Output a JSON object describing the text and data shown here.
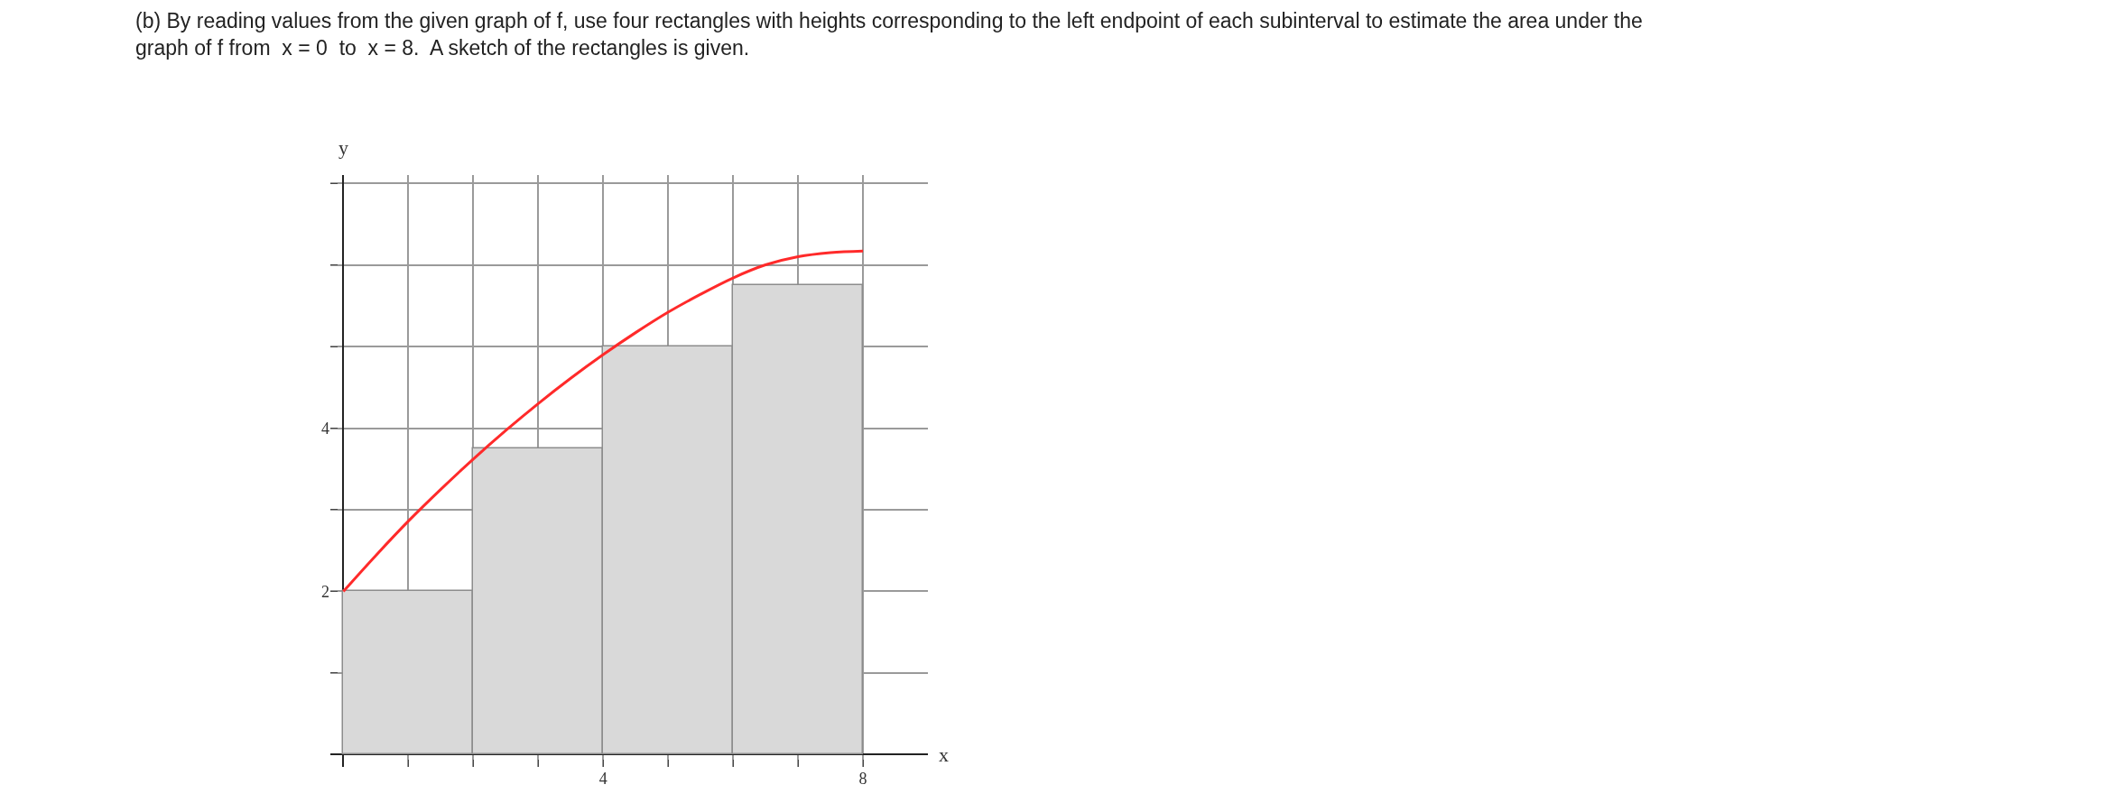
{
  "chart_data": {
    "type": "bar",
    "title": "(b) By reading values from the given graph of f, use four rectangles with heights corresponding to the left endpoint of each subinterval to estimate the area under the\ngraph of f from  x = 0  to  x = 8.  A sketch of the rectangles is given.",
    "xlabel": "x",
    "ylabel": "y",
    "series": [
      {
        "x": [
          1,
          3,
          5,
          7
        ],
        "values": [
          2,
          3.75,
          5,
          5.75
        ],
        "color": "#d9d9d9"
      },
      {
        "type": "line",
        "color": "#ff2a2a",
        "x": [
          0,
          0.5,
          1,
          1.5,
          2,
          2.5,
          3,
          3.5,
          4,
          4.5,
          5,
          5.5,
          6,
          6.5,
          7,
          7.5,
          8
        ],
        "values": [
          2,
          2.44,
          2.86,
          3.25,
          3.62,
          3.97,
          4.3,
          4.61,
          4.9,
          5.17,
          5.42,
          5.64,
          5.84,
          6.0,
          6.1,
          6.15,
          6.17
        ]
      }
    ],
    "xlim": [
      -0.2,
      9
    ],
    "ylim": [
      -0.15,
      7.1
    ],
    "xticks": [
      {
        "value": 1,
        "label": null
      },
      {
        "value": 2,
        "label": null
      },
      {
        "value": 3,
        "label": null
      },
      4,
      {
        "value": 5,
        "label": null
      },
      {
        "value": 6,
        "label": null
      },
      {
        "value": 7,
        "label": null
      },
      8
    ],
    "yticks": [
      {
        "value": 1,
        "label": null
      },
      2,
      {
        "value": 3,
        "label": null
      },
      4,
      {
        "value": 5,
        "label": null
      },
      {
        "value": 6,
        "label": null
      },
      {
        "value": 7,
        "label": null
      }
    ],
    "grid": true
  }
}
